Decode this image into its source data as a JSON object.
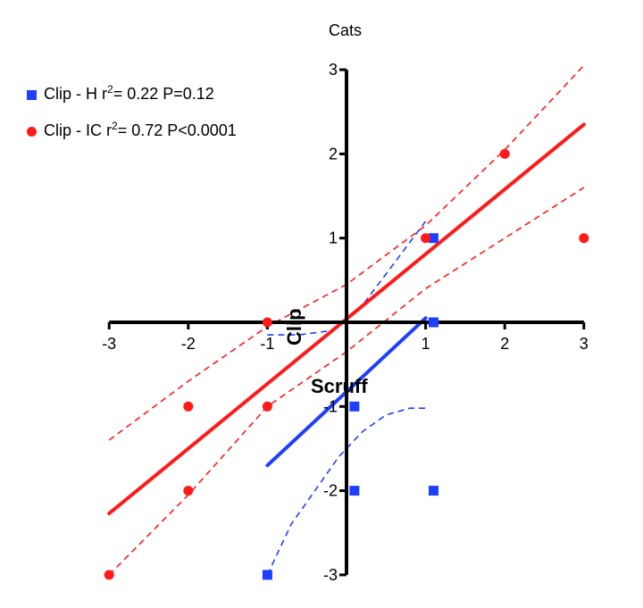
{
  "chart_data": {
    "type": "scatter",
    "title": "Cats",
    "xlabel": "Scruff",
    "ylabel": "Clip",
    "xlim": [
      -3,
      3
    ],
    "ylim": [
      -3,
      3
    ],
    "x_ticks": [
      "-3",
      "-2",
      "-1",
      "1",
      "2",
      "3"
    ],
    "y_ticks": [
      "-3",
      "-2",
      "-1",
      "1",
      "2",
      "3"
    ],
    "grid": false,
    "legend_position": "top-left",
    "series": [
      {
        "name": "Clip - H",
        "name_prefix": "Clip - H r",
        "name_sup": "2",
        "name_suffix": "= 0.22 P=0.12",
        "color": "#1f3fff",
        "marker": "square",
        "points": [
          {
            "x": -1,
            "y": -3
          },
          {
            "x": 0.1,
            "y": -1
          },
          {
            "x": 0.1,
            "y": -2
          },
          {
            "x": 1.1,
            "y": 1
          },
          {
            "x": 1.1,
            "y": 0
          },
          {
            "x": 1.1,
            "y": -2
          }
        ],
        "fit": {
          "x": [
            -1,
            1
          ],
          "y": [
            -1.7,
            0.05
          ]
        },
        "ci_upper": {
          "x": [
            -1,
            -0.6,
            -0.2,
            0.2,
            0.6,
            1
          ],
          "y": [
            -0.15,
            -0.15,
            -0.1,
            0.2,
            0.7,
            1.2
          ]
        },
        "ci_lower": {
          "x": [
            -1,
            -0.7,
            -0.4,
            -0.1,
            0.2,
            0.5,
            0.8,
            1
          ],
          "y": [
            -3,
            -2.4,
            -2,
            -1.6,
            -1.3,
            -1.1,
            -1.02,
            -1.02
          ]
        }
      },
      {
        "name": "Clip - IC",
        "name_prefix": "Clip - IC r",
        "name_sup": "2",
        "name_suffix": "= 0.72 P<0.0001",
        "color": "#ff1a1a",
        "marker": "circle",
        "points": [
          {
            "x": -3,
            "y": -3
          },
          {
            "x": -2,
            "y": -1
          },
          {
            "x": -2,
            "y": -2
          },
          {
            "x": -1,
            "y": 0
          },
          {
            "x": -1,
            "y": -1
          },
          {
            "x": 1,
            "y": 1
          },
          {
            "x": 2,
            "y": 2
          },
          {
            "x": 3,
            "y": 1
          }
        ],
        "fit": {
          "x": [
            -3,
            3
          ],
          "y": [
            -2.27,
            2.35
          ]
        },
        "ci_upper": {
          "x": [
            -3,
            -2,
            -1,
            0,
            1,
            2,
            3
          ],
          "y": [
            -1.4,
            -0.7,
            -0.05,
            0.45,
            1.15,
            2.05,
            3.05
          ]
        },
        "ci_lower": {
          "x": [
            -3,
            -2,
            -1,
            0,
            1,
            2,
            3
          ],
          "y": [
            -3.0,
            -2.05,
            -1.0,
            -0.35,
            0.4,
            1.0,
            1.6
          ]
        }
      }
    ]
  }
}
